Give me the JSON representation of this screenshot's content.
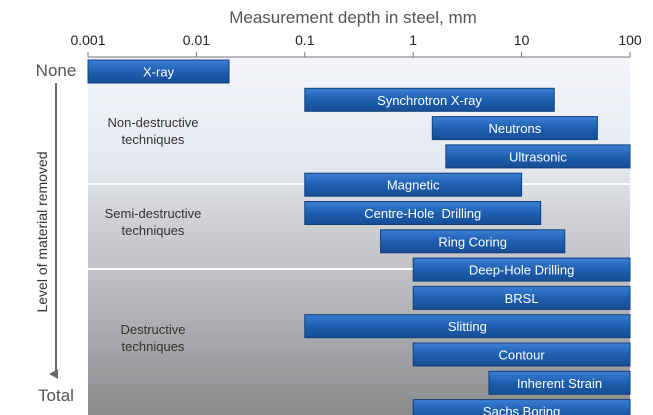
{
  "chart_data": {
    "type": "bar",
    "orientation": "horizontal",
    "title": "",
    "xlabel": "Measurement depth in steel, mm",
    "ylabel": "Level of material removed",
    "x_scale": "log",
    "xlim": [
      0.001,
      100
    ],
    "x_ticks": [
      "0.001",
      "0.01",
      "0.1",
      "1",
      "10",
      "100"
    ],
    "x_tick_values": [
      0.001,
      0.01,
      0.1,
      1,
      10,
      100
    ],
    "y_top_label": "None",
    "y_bottom_label": "Total",
    "grid": false,
    "colors": {
      "bar": "#1f5fb0",
      "bar_border": "#123f7c",
      "bar_text": "#ffffff",
      "band_light": "#eef1f8",
      "band_mid": "#c9cbce",
      "band_dark": "#8e8f91"
    },
    "groups": [
      {
        "name": "Non-destructive techniques",
        "lines": [
          "Non-destructive",
          "techniques"
        ]
      },
      {
        "name": "Semi-destructive techniques",
        "lines": [
          "Semi-destructive",
          "techniques"
        ]
      },
      {
        "name": "Destructive techniques",
        "lines": [
          "Destructive",
          "techniques"
        ]
      }
    ],
    "series": [
      {
        "name": "X-ray",
        "start": 0.001,
        "end": 0.02,
        "group": "Non-destructive techniques"
      },
      {
        "name": "Synchrotron X-ray",
        "start": 0.1,
        "end": 20,
        "group": "Non-destructive techniques"
      },
      {
        "name": "Neutrons",
        "start": 1.5,
        "end": 50,
        "group": "Non-destructive techniques"
      },
      {
        "name": "Ultrasonic",
        "start": 2,
        "end": 100,
        "group": "Non-destructive techniques"
      },
      {
        "name": "Magnetic",
        "start": 0.1,
        "end": 10,
        "group": "Non-destructive techniques"
      },
      {
        "name": "Centre-Hole  Drilling",
        "start": 0.1,
        "end": 15,
        "group": "Semi-destructive techniques"
      },
      {
        "name": "Ring Coring",
        "start": 0.5,
        "end": 25,
        "group": "Semi-destructive techniques"
      },
      {
        "name": "Deep-Hole Drilling",
        "start": 1,
        "end": 100,
        "group": "Semi-destructive techniques"
      },
      {
        "name": "BRSL",
        "start": 1,
        "end": 100,
        "group": "Destructive techniques"
      },
      {
        "name": "Slitting",
        "start": 0.1,
        "end": 100,
        "group": "Destructive techniques"
      },
      {
        "name": "Contour",
        "start": 1,
        "end": 100,
        "group": "Destructive techniques"
      },
      {
        "name": "Inherent Strain",
        "start": 5,
        "end": 100,
        "group": "Destructive techniques"
      },
      {
        "name": "Sachs Boring",
        "start": 1,
        "end": 100,
        "group": "Destructive techniques"
      }
    ]
  }
}
